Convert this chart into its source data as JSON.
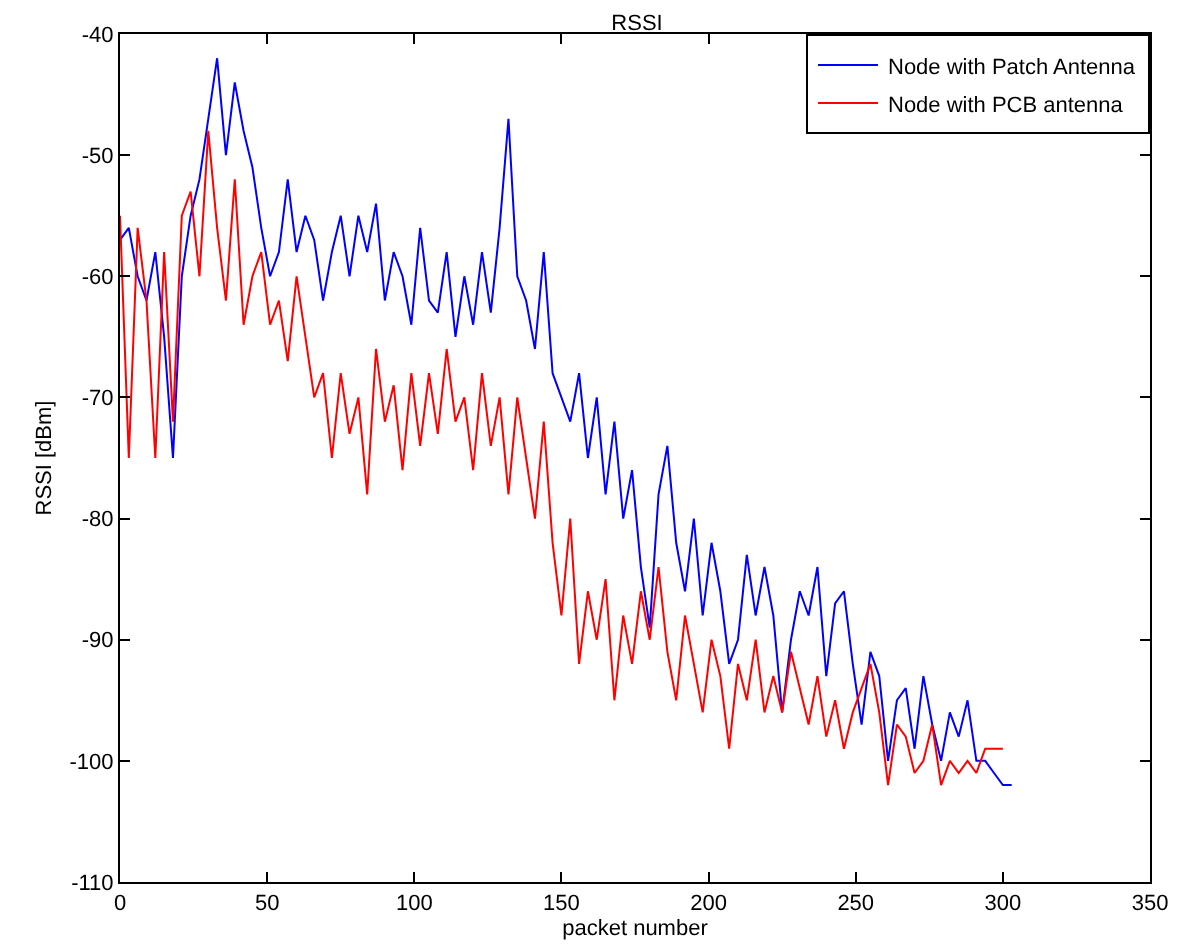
{
  "chart_data": {
    "type": "line",
    "title": "RSSI",
    "xlabel": "packet number",
    "ylabel": "RSSI [dBm]",
    "x": [
      0,
      3,
      6,
      9,
      12,
      15,
      18,
      21,
      24,
      27,
      30,
      33,
      36,
      39,
      42,
      45,
      48,
      51,
      54,
      57,
      60,
      63,
      66,
      69,
      72,
      75,
      78,
      81,
      84,
      87,
      90,
      93,
      96,
      99,
      102,
      105,
      108,
      111,
      114,
      117,
      120,
      123,
      126,
      129,
      132,
      135,
      138,
      141,
      144,
      147,
      150,
      153,
      156,
      159,
      162,
      165,
      168,
      171,
      174,
      177,
      180,
      183,
      186,
      189,
      192,
      195,
      198,
      201,
      204,
      207,
      210,
      213,
      216,
      219,
      222,
      225,
      228,
      231,
      234,
      237,
      240,
      243,
      246,
      249,
      252,
      255,
      258,
      261,
      264,
      267,
      270,
      273,
      276,
      279,
      282,
      285,
      288,
      291,
      294,
      297,
      300,
      303
    ],
    "series": [
      {
        "name": "Node with Patch Antenna",
        "color": "#0000ff",
        "values": [
          -57,
          -56,
          -60,
          -62,
          -58,
          -65,
          -75,
          -60,
          -55,
          -52,
          -47,
          -42,
          -50,
          -44,
          -48,
          -51,
          -56,
          -60,
          -58,
          -52,
          -58,
          -55,
          -57,
          -62,
          -58,
          -55,
          -60,
          -55,
          -58,
          -54,
          -62,
          -58,
          -60,
          -64,
          -56,
          -62,
          -63,
          -58,
          -65,
          -60,
          -64,
          -58,
          -63,
          -56,
          -47,
          -60,
          -62,
          -66,
          -58,
          -68,
          -70,
          -72,
          -68,
          -75,
          -70,
          -78,
          -72,
          -80,
          -76,
          -84,
          -89,
          -78,
          -74,
          -82,
          -86,
          -80,
          -88,
          -82,
          -86,
          -92,
          -90,
          -83,
          -88,
          -84,
          -88,
          -96,
          -90,
          -86,
          -88,
          -84,
          -93,
          -87,
          -86,
          -92,
          -97,
          -91,
          -93,
          -100,
          -95,
          -94,
          -99,
          -93,
          -97,
          -100,
          -96,
          -98,
          -95,
          -100,
          -100,
          -101,
          -102,
          -102
        ]
      },
      {
        "name": "Node with PCB antenna",
        "color": "#ff0000",
        "values": [
          -55,
          -75,
          -56,
          -62,
          -75,
          -58,
          -72,
          -55,
          -53,
          -60,
          -48,
          -56,
          -62,
          -52,
          -64,
          -60,
          -58,
          -64,
          -62,
          -67,
          -60,
          -65,
          -70,
          -68,
          -75,
          -68,
          -73,
          -70,
          -78,
          -66,
          -72,
          -69,
          -76,
          -68,
          -74,
          -68,
          -73,
          -66,
          -72,
          -70,
          -76,
          -68,
          -74,
          -70,
          -78,
          -70,
          -75,
          -80,
          -72,
          -82,
          -88,
          -80,
          -92,
          -86,
          -90,
          -85,
          -95,
          -88,
          -92,
          -86,
          -90,
          -84,
          -91,
          -95,
          -88,
          -92,
          -96,
          -90,
          -93,
          -99,
          -92,
          -95,
          -90,
          -96,
          -93,
          -96,
          -91,
          -94,
          -97,
          -93,
          -98,
          -95,
          -99,
          -96,
          -94,
          -92,
          -96,
          -102,
          -97,
          -98,
          -101,
          -100,
          -97,
          -102,
          -100,
          -101,
          -100,
          -101,
          -99,
          -99,
          -99,
          null
        ]
      }
    ],
    "xlim": [
      0,
      350
    ],
    "xticks": [
      0,
      50,
      100,
      150,
      200,
      250,
      300,
      350
    ],
    "ylim": [
      -110,
      -40
    ],
    "yticks": [
      -110,
      -100,
      -90,
      -80,
      -70,
      -60,
      -50,
      -40
    ],
    "grid": false,
    "legend": "top right",
    "marker": "none",
    "line_style": "solid"
  }
}
